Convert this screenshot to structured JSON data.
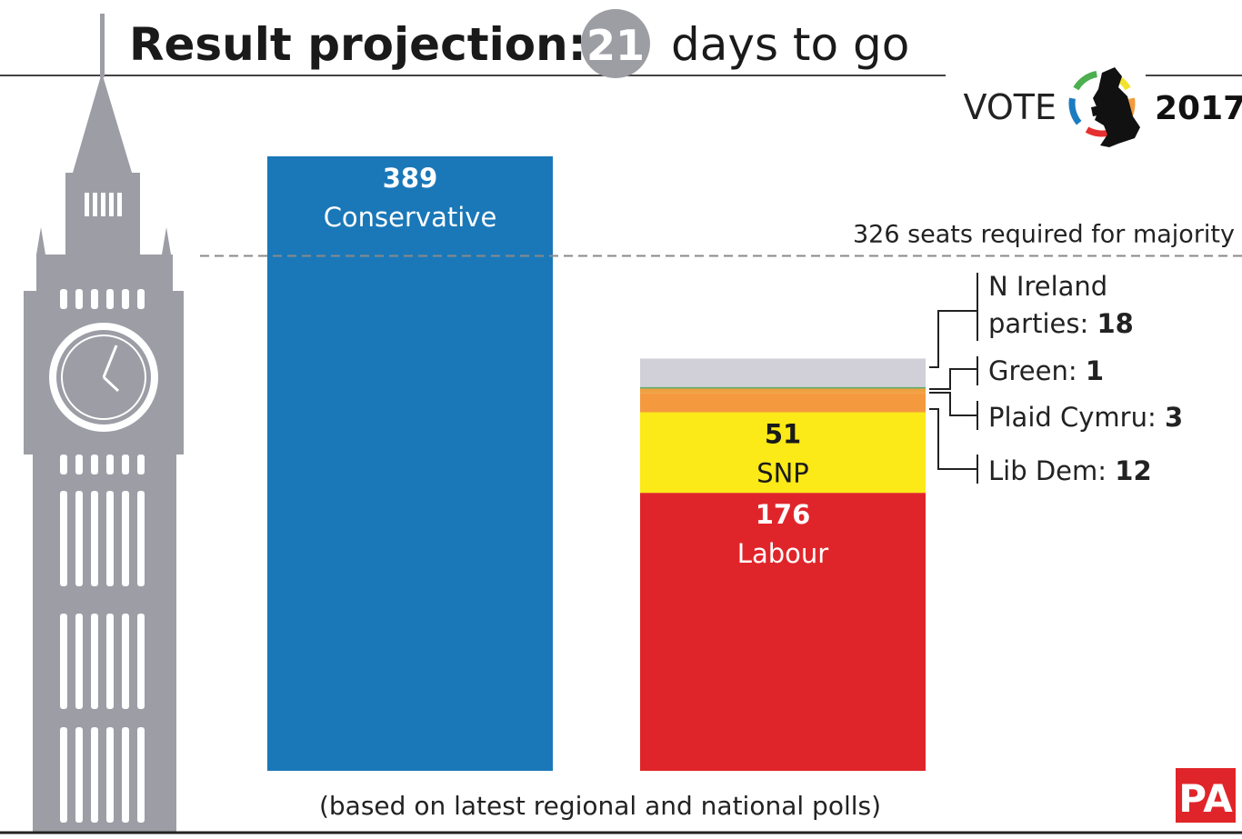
{
  "title": {
    "prefix": "Result projection:",
    "days": "21",
    "suffix": "days to go"
  },
  "logo": {
    "text_left": "VOTE",
    "text_right": "2017",
    "ring_colors": [
      "#4caf50",
      "#f2e22a",
      "#f39a3c",
      "#e53030",
      "#1a7cc1"
    ]
  },
  "footnote": "(based on latest regional and national polls)",
  "pa_logo": "PA",
  "chart_data": {
    "type": "bar",
    "stacked": true,
    "ylim": [
      0,
      389
    ],
    "grid": false,
    "majority": {
      "value": 326,
      "label": "326 seats required for majority"
    },
    "bars": [
      {
        "segments": [
          {
            "party": "Conservative",
            "value": 389,
            "value_label": "389",
            "color": "#1a78b8",
            "text_color": "#ffffff"
          }
        ]
      },
      {
        "segments": [
          {
            "party": "Labour",
            "value": 176,
            "value_label": "176",
            "color": "#e0252a",
            "text_color": "#ffffff"
          },
          {
            "party": "SNP",
            "value": 51,
            "value_label": "51",
            "color": "#fbe918",
            "text_color": "#1a1a1a"
          },
          {
            "party": "Lib Dem",
            "value": 12,
            "value_label": "12",
            "color": "#f5993f"
          },
          {
            "party": "Plaid Cymru",
            "value": 3,
            "value_label": "3",
            "color": "#f0a040"
          },
          {
            "party": "Green",
            "value": 1,
            "value_label": "1",
            "color": "#5cab6a"
          },
          {
            "party": "N Ireland parties",
            "value": 18,
            "value_label": "18",
            "color": "#d1d0d8"
          }
        ]
      }
    ],
    "callouts": [
      {
        "line1": "N Ireland",
        "line2": "parties:",
        "value": "18"
      },
      {
        "line1": "Green:",
        "value": "1"
      },
      {
        "line1": "Plaid Cymru:",
        "value": "3"
      },
      {
        "line1": "Lib Dem:",
        "value": "12"
      }
    ]
  }
}
